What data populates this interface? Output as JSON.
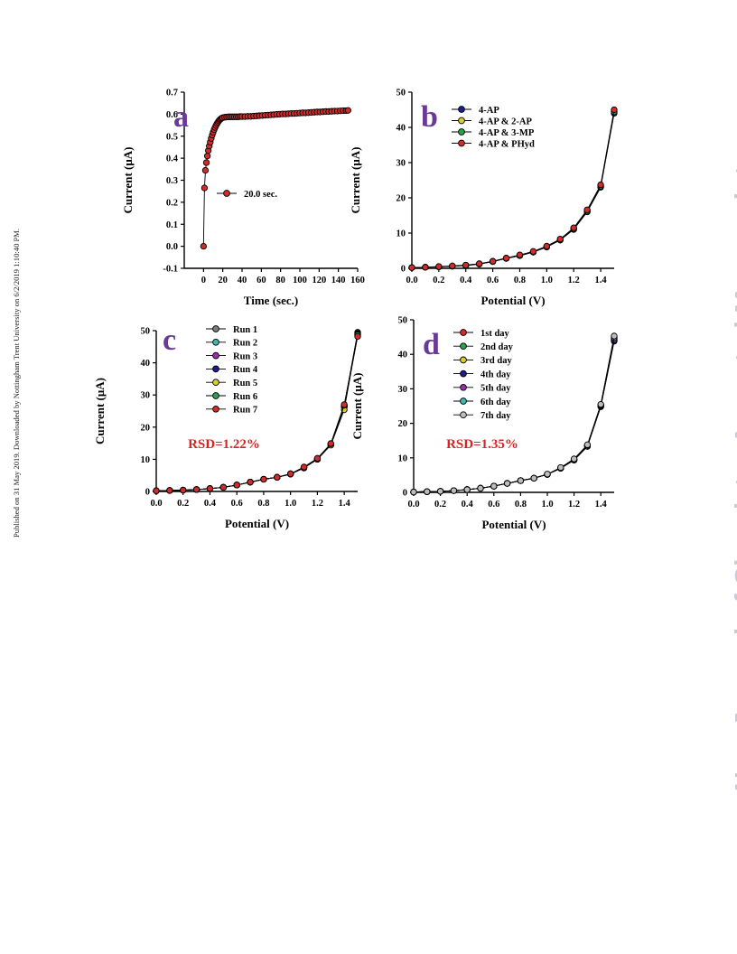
{
  "page": {
    "side_note": "Published on 31 May 2019. Downloaded by Nottingham Trent University on 6/2/2019 1:10:40 PM.",
    "watermark": "New Journal of Chemistry Accepted Manuscript",
    "watermark_color": "#c9c9df",
    "panel_letter_color": "#6a3a96",
    "rsd_color": "#e02020"
  },
  "chart_data": [
    {
      "type": "line",
      "panel_label": "a",
      "xlabel": "Time (sec.)",
      "ylabel": "Current (μA)",
      "xlim": [
        -20,
        160
      ],
      "ylim": [
        -0.1,
        0.7
      ],
      "xticks": [
        "0",
        "20",
        "40",
        "60",
        "80",
        "100",
        "120",
        "140",
        "160"
      ],
      "yticks": [
        "-0.1",
        "0.0",
        "0.1",
        "0.2",
        "0.3",
        "0.4",
        "0.5",
        "0.6",
        "0.7"
      ],
      "grid": false,
      "legend_position": "middle",
      "series": [
        {
          "name": "20.0 sec.",
          "color": "#d42a2a",
          "x": [
            0,
            1,
            2,
            3,
            4,
            5,
            6,
            7,
            8,
            9,
            10,
            11,
            12,
            13,
            14,
            15,
            16,
            17,
            18,
            19,
            20,
            22,
            24,
            26,
            28,
            30,
            32,
            34,
            36,
            38,
            40,
            43,
            46,
            49,
            52,
            55,
            58,
            61,
            64,
            67,
            70,
            73,
            76,
            79,
            82,
            85,
            88,
            91,
            94,
            97,
            100,
            103,
            106,
            109,
            112,
            115,
            118,
            121,
            124,
            127,
            130,
            133,
            136,
            139,
            142,
            145,
            148,
            150
          ],
          "y": [
            0.0,
            0.265,
            0.345,
            0.38,
            0.41,
            0.435,
            0.455,
            0.473,
            0.49,
            0.505,
            0.518,
            0.53,
            0.54,
            0.549,
            0.557,
            0.564,
            0.57,
            0.575,
            0.579,
            0.582,
            0.584,
            0.586,
            0.587,
            0.588,
            0.588,
            0.588,
            0.588,
            0.588,
            0.588,
            0.589,
            0.589,
            0.589,
            0.59,
            0.59,
            0.591,
            0.592,
            0.593,
            0.594,
            0.595,
            0.596,
            0.597,
            0.598,
            0.599,
            0.6,
            0.601,
            0.601,
            0.602,
            0.603,
            0.603,
            0.604,
            0.605,
            0.606,
            0.606,
            0.607,
            0.608,
            0.609,
            0.61,
            0.61,
            0.611,
            0.612,
            0.612,
            0.613,
            0.614,
            0.614,
            0.615,
            0.616,
            0.616,
            0.617
          ]
        }
      ]
    },
    {
      "type": "line",
      "panel_label": "b",
      "xlabel": "Potential (V)",
      "ylabel": "Current (μA)",
      "xlim": [
        0,
        1.5
      ],
      "ylim": [
        0,
        50
      ],
      "xticks": [
        "0.0",
        "0.2",
        "0.4",
        "0.6",
        "0.8",
        "1.0",
        "1.2",
        "1.4"
      ],
      "yticks": [
        "0",
        "10",
        "20",
        "30",
        "40",
        "50"
      ],
      "grid": false,
      "legend_position": "top-left",
      "x": [
        0.0,
        0.1,
        0.2,
        0.3,
        0.4,
        0.5,
        0.6,
        0.7,
        0.8,
        0.9,
        1.0,
        1.1,
        1.2,
        1.3,
        1.4,
        1.5
      ],
      "series": [
        {
          "name": "4-AP",
          "color": "#1c1c8c",
          "values": [
            0.2,
            0.3,
            0.4,
            0.6,
            0.8,
            1.2,
            1.9,
            2.8,
            3.6,
            4.6,
            6.0,
            8.0,
            11.0,
            16.0,
            23.0,
            44.0
          ]
        },
        {
          "name": "4-AP & 2-AP",
          "color": "#d8cf2a",
          "values": [
            0.2,
            0.3,
            0.5,
            0.6,
            0.9,
            1.3,
            2.0,
            2.9,
            3.7,
            4.7,
            6.2,
            8.2,
            11.3,
            16.3,
            23.4,
            44.6
          ]
        },
        {
          "name": "4-AP & 3-MP",
          "color": "#2aa24a",
          "values": [
            0.2,
            0.3,
            0.4,
            0.6,
            0.8,
            1.2,
            1.9,
            2.8,
            3.6,
            4.6,
            6.1,
            8.1,
            11.2,
            16.2,
            23.3,
            44.4
          ]
        },
        {
          "name": "4-AP & PHyd",
          "color": "#d42a2a",
          "values": [
            0.2,
            0.3,
            0.5,
            0.7,
            0.9,
            1.3,
            2.0,
            2.9,
            3.8,
            4.8,
            6.3,
            8.3,
            11.5,
            16.6,
            23.7,
            45.0
          ]
        }
      ]
    },
    {
      "type": "line",
      "panel_label": "c",
      "annotation": "RSD=1.22%",
      "xlabel": "Potential (V)",
      "ylabel": "Current (μA)",
      "xlim": [
        0,
        1.5
      ],
      "ylim": [
        0,
        50
      ],
      "xticks": [
        "0.0",
        "0.2",
        "0.4",
        "0.6",
        "0.8",
        "1.0",
        "1.2",
        "1.4"
      ],
      "yticks": [
        "0",
        "10",
        "20",
        "30",
        "40",
        "50"
      ],
      "grid": false,
      "legend_position": "top-left",
      "x": [
        0.0,
        0.1,
        0.2,
        0.3,
        0.4,
        0.5,
        0.6,
        0.7,
        0.8,
        0.9,
        1.0,
        1.1,
        1.2,
        1.3,
        1.4,
        1.5
      ],
      "series": [
        {
          "name": "Run 1",
          "color": "#7d7d7d",
          "values": [
            0.2,
            0.3,
            0.4,
            0.6,
            0.9,
            1.3,
            2.0,
            2.9,
            3.8,
            4.4,
            5.4,
            7.3,
            10.0,
            14.5,
            26.5,
            49.5
          ]
        },
        {
          "name": "Run 2",
          "color": "#3fb8b0",
          "values": [
            0.2,
            0.3,
            0.4,
            0.6,
            0.9,
            1.3,
            2.0,
            2.9,
            3.8,
            4.4,
            5.4,
            7.4,
            10.1,
            14.6,
            26.4,
            49.2
          ]
        },
        {
          "name": "Run 3",
          "color": "#9a2ea8",
          "values": [
            0.2,
            0.3,
            0.4,
            0.6,
            0.9,
            1.3,
            2.0,
            2.9,
            3.8,
            4.4,
            5.5,
            7.4,
            10.1,
            14.7,
            26.6,
            49.0
          ]
        },
        {
          "name": "Run 4",
          "color": "#1c1c8c",
          "values": [
            0.2,
            0.3,
            0.4,
            0.6,
            0.9,
            1.3,
            2.0,
            2.9,
            3.8,
            4.4,
            5.4,
            7.3,
            10.0,
            14.5,
            26.2,
            48.8
          ]
        },
        {
          "name": "Run 5",
          "color": "#d8cf2a",
          "values": [
            0.2,
            0.3,
            0.4,
            0.6,
            0.9,
            1.3,
            2.0,
            2.9,
            3.8,
            4.4,
            5.4,
            7.3,
            10.0,
            14.4,
            25.4,
            48.5
          ]
        },
        {
          "name": "Run 6",
          "color": "#2aa24a",
          "values": [
            0.2,
            0.3,
            0.4,
            0.6,
            0.9,
            1.3,
            2.0,
            2.9,
            3.8,
            4.4,
            5.5,
            7.5,
            10.2,
            14.8,
            26.8,
            48.7
          ]
        },
        {
          "name": "Run 7",
          "color": "#d42a2a",
          "values": [
            0.2,
            0.3,
            0.4,
            0.6,
            0.9,
            1.3,
            2.0,
            2.9,
            3.8,
            4.4,
            5.5,
            7.6,
            10.3,
            14.9,
            27.0,
            48.2
          ]
        }
      ]
    },
    {
      "type": "line",
      "panel_label": "d",
      "annotation": "RSD=1.35%",
      "xlabel": "Potential (V)",
      "ylabel": "Current (μA)",
      "xlim": [
        0,
        1.5
      ],
      "ylim": [
        0,
        50
      ],
      "xticks": [
        "0.0",
        "0.2",
        "0.4",
        "0.6",
        "0.8",
        "1.0",
        "1.2",
        "1.4"
      ],
      "yticks": [
        "0",
        "10",
        "20",
        "30",
        "40",
        "50"
      ],
      "grid": false,
      "legend_position": "top-left",
      "x": [
        0.0,
        0.1,
        0.2,
        0.3,
        0.4,
        0.5,
        0.6,
        0.7,
        0.8,
        0.9,
        1.0,
        1.1,
        1.2,
        1.3,
        1.4,
        1.5
      ],
      "series": [
        {
          "name": "1st day",
          "color": "#d42a2a",
          "values": [
            0.1,
            0.2,
            0.3,
            0.5,
            0.8,
            1.2,
            1.8,
            2.6,
            3.4,
            4.1,
            5.2,
            7.0,
            9.5,
            13.5,
            25.0,
            44.0
          ]
        },
        {
          "name": "2nd day",
          "color": "#2aa24a",
          "values": [
            0.1,
            0.2,
            0.3,
            0.5,
            0.8,
            1.2,
            1.8,
            2.6,
            3.4,
            4.1,
            5.2,
            7.0,
            9.4,
            13.4,
            25.2,
            44.5
          ]
        },
        {
          "name": "3rd day",
          "color": "#d8cf2a",
          "values": [
            0.1,
            0.2,
            0.3,
            0.5,
            0.8,
            1.2,
            1.8,
            2.6,
            3.4,
            4.1,
            5.2,
            7.1,
            9.5,
            13.6,
            25.4,
            45.0
          ]
        },
        {
          "name": "4th day",
          "color": "#1c1c8c",
          "values": [
            0.1,
            0.2,
            0.3,
            0.5,
            0.8,
            1.2,
            1.8,
            2.6,
            3.4,
            4.1,
            5.2,
            7.0,
            9.3,
            13.3,
            24.8,
            43.8
          ]
        },
        {
          "name": "5th day",
          "color": "#9a2ea8",
          "values": [
            0.1,
            0.2,
            0.3,
            0.5,
            0.8,
            1.2,
            1.8,
            2.6,
            3.4,
            4.1,
            5.2,
            7.0,
            9.4,
            13.4,
            25.1,
            44.2
          ]
        },
        {
          "name": "6th day",
          "color": "#3fb8b0",
          "values": [
            0.1,
            0.2,
            0.3,
            0.5,
            0.8,
            1.2,
            1.8,
            2.6,
            3.4,
            4.1,
            5.2,
            7.1,
            9.6,
            13.7,
            25.3,
            44.8
          ]
        },
        {
          "name": "7th day",
          "color": "#bdbdbd",
          "values": [
            0.1,
            0.2,
            0.3,
            0.5,
            0.8,
            1.2,
            1.8,
            2.6,
            3.4,
            4.1,
            5.3,
            7.2,
            9.7,
            13.8,
            25.5,
            45.3
          ]
        }
      ]
    }
  ]
}
